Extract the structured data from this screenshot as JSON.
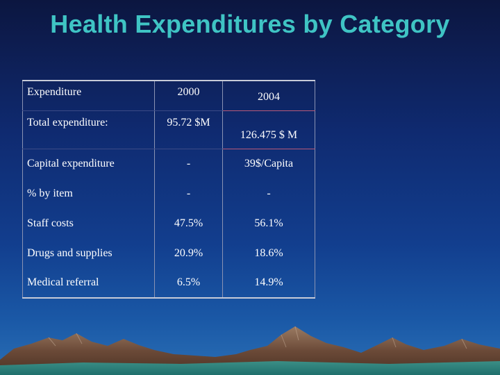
{
  "slide": {
    "title": "Health Expenditures by Category"
  },
  "table": {
    "headers": [
      "Expenditure",
      "2000",
      "2004"
    ],
    "rows": [
      [
        "Total expenditure:",
        "95.72 $M",
        "126.475 $ M"
      ],
      [
        "Capital expenditure",
        "-",
        "39$/Capita"
      ],
      [
        "% by item",
        "-",
        "-"
      ],
      [
        "Staff costs",
        "47.5%",
        "56.1%"
      ],
      [
        "Drugs and supplies",
        "20.9%",
        "18.6%"
      ],
      [
        "Medical referral",
        "6.5%",
        "14.9%"
      ]
    ]
  },
  "colors": {
    "title": "#3fc4c4",
    "background_top": "#0c1640",
    "background_bottom": "#2a6fb5",
    "table_text": "#ffffff"
  }
}
